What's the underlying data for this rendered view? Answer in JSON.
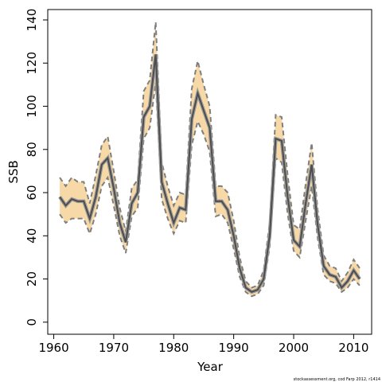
{
  "chart_data": {
    "type": "band-line",
    "x_label": "Year",
    "y_label": "SSB",
    "footnote": "stockassessment.org, cod Farp 2012, r1414",
    "x": [
      1961,
      1962,
      1963,
      1964,
      1965,
      1966,
      1967,
      1968,
      1969,
      1970,
      1971,
      1972,
      1973,
      1974,
      1975,
      1976,
      1977,
      1978,
      1979,
      1980,
      1981,
      1982,
      1983,
      1984,
      1985,
      1986,
      1987,
      1988,
      1989,
      1990,
      1991,
      1992,
      1993,
      1994,
      1995,
      1996,
      1997,
      1998,
      1999,
      2000,
      2001,
      2002,
      2003,
      2004,
      2005,
      2006,
      2007,
      2008,
      2009,
      2010,
      2011
    ],
    "values": [
      58,
      54,
      57,
      56,
      56,
      48,
      58,
      73,
      76,
      62,
      46,
      37,
      55,
      60,
      95,
      100,
      124,
      65,
      55,
      46,
      53,
      52,
      94,
      106,
      98,
      90,
      56,
      56,
      52,
      40,
      25,
      16,
      14,
      15,
      20,
      40,
      85,
      84,
      58,
      38,
      35,
      55,
      73,
      45,
      26,
      22,
      21,
      16,
      19,
      24,
      20
    ],
    "upper": [
      67,
      63,
      67,
      65,
      65,
      55,
      68,
      82,
      86,
      70,
      53,
      42,
      62,
      66,
      107,
      112,
      139,
      74,
      63,
      54,
      60,
      59,
      108,
      121,
      110,
      100,
      63,
      63,
      60,
      47,
      30,
      19,
      16,
      17,
      24,
      46,
      96,
      95,
      68,
      45,
      43,
      64,
      83,
      52,
      31,
      26,
      25,
      19,
      23,
      29,
      25
    ],
    "lower": [
      50,
      46,
      48,
      48,
      48,
      41,
      50,
      63,
      67,
      54,
      40,
      32,
      49,
      53,
      85,
      90,
      111,
      57,
      48,
      41,
      47,
      46,
      82,
      93,
      87,
      79,
      49,
      50,
      46,
      34,
      21,
      14,
      12,
      13,
      17,
      35,
      76,
      74,
      50,
      33,
      30,
      47,
      63,
      39,
      22,
      19,
      18,
      14,
      16,
      20,
      17
    ],
    "color": "#4d4d4d",
    "band_color": "#f7d9a8",
    "bound_color": "#7f7f7f",
    "xlim": [
      1959,
      2013
    ],
    "ylim": [
      -5.6,
      144.8
    ],
    "xticks": [
      1960,
      1970,
      1980,
      1990,
      2000,
      2010
    ],
    "yticks": [
      0,
      20,
      40,
      60,
      80,
      100,
      120,
      140
    ]
  }
}
